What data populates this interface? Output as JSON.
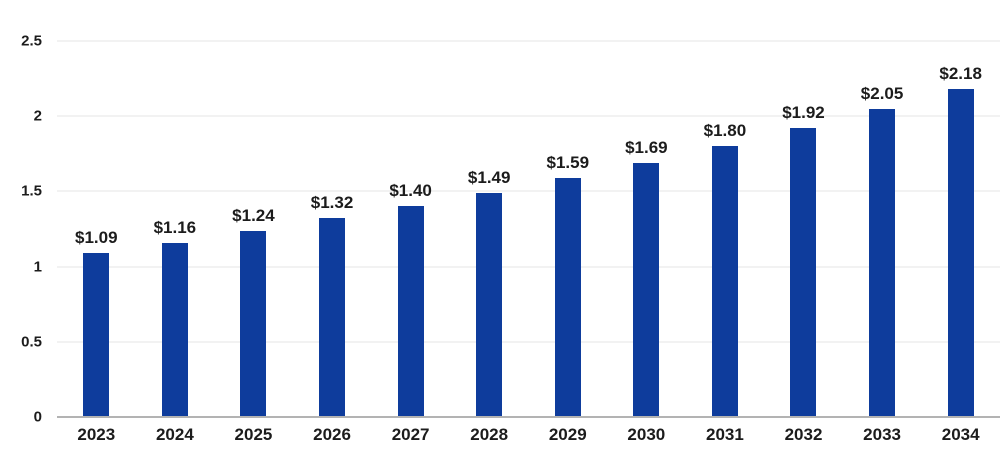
{
  "chart_data": {
    "type": "bar",
    "title": "",
    "xlabel": "",
    "ylabel": "",
    "categories": [
      "2023",
      "2024",
      "2025",
      "2026",
      "2027",
      "2028",
      "2029",
      "2030",
      "2031",
      "2032",
      "2033",
      "2034"
    ],
    "values": [
      1.09,
      1.16,
      1.24,
      1.32,
      1.4,
      1.49,
      1.59,
      1.69,
      1.8,
      1.92,
      2.05,
      2.18
    ],
    "bar_labels": [
      "$1.09",
      "$1.16",
      "$1.24",
      "$1.32",
      "$1.40",
      "$1.49",
      "$1.59",
      "$1.69",
      "$1.80",
      "$1.92",
      "$2.05",
      "$2.18"
    ],
    "ylim": [
      0,
      2.5
    ],
    "yticks": [
      0,
      0.5,
      1,
      1.5,
      2,
      2.5
    ],
    "ytick_labels": [
      "0",
      "0.5",
      "1",
      "1.5",
      "2",
      "2.5"
    ],
    "grid": true,
    "legend": false,
    "colors": {
      "bar": "#0e3c9c",
      "label_text": "#1c1c1c",
      "gridline": "#f2f2f2",
      "axis_line": "#b3b3b3",
      "background": "#ffffff"
    }
  }
}
